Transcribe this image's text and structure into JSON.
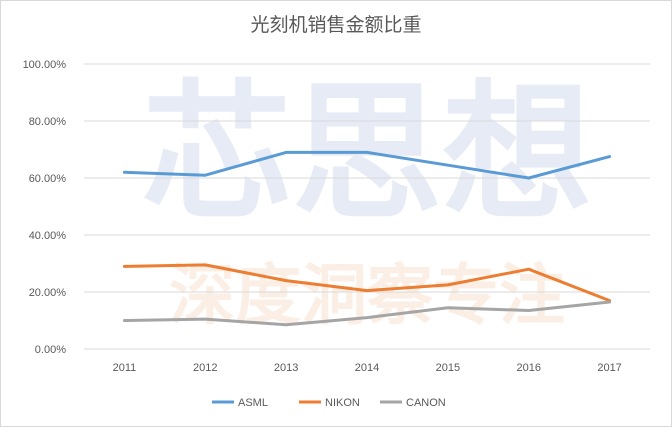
{
  "chart_data": {
    "type": "line",
    "title": "光刻机销售金额比重",
    "categories": [
      "2011",
      "2012",
      "2013",
      "2014",
      "2015",
      "2016",
      "2017"
    ],
    "series": [
      {
        "name": "ASML",
        "color": "#5b9bd5",
        "values": [
          62.0,
          61.0,
          69.0,
          69.0,
          64.5,
          60.0,
          67.5
        ]
      },
      {
        "name": "NIKON",
        "color": "#ed7d31",
        "values": [
          29.0,
          29.5,
          24.0,
          20.5,
          22.5,
          28.0,
          17.0
        ]
      },
      {
        "name": "CANON",
        "color": "#a5a5a5",
        "values": [
          10.0,
          10.5,
          8.5,
          11.0,
          14.5,
          13.5,
          16.5
        ]
      }
    ],
    "y_ticks": [
      "0.00%",
      "20.00%",
      "40.00%",
      "60.00%",
      "80.00%",
      "100.00%"
    ],
    "ylim": [
      0,
      100
    ],
    "grid": true,
    "legend": "bottom"
  },
  "watermark": {
    "line1": "芯思想",
    "line2": "深度洞察专注"
  }
}
